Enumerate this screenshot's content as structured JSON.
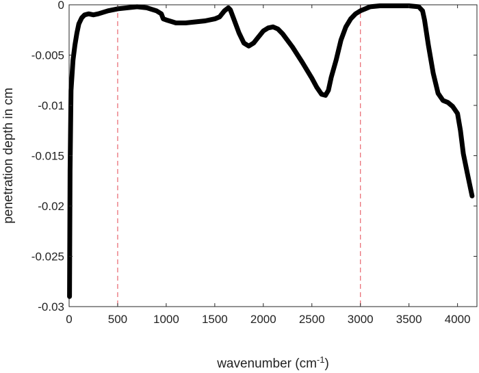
{
  "chart_data": {
    "type": "line",
    "title": "",
    "xlabel": "wavenumber (cm",
    "xlabel_sup": "-1",
    "xlabel_close": ")",
    "ylabel": "penetration depth in cm",
    "xlim": [
      0,
      4200
    ],
    "ylim": [
      -0.03,
      0
    ],
    "grid": false,
    "x_ticks": [
      0,
      500,
      1000,
      1500,
      2000,
      2500,
      3000,
      3500,
      4000
    ],
    "x_tick_labels": [
      "0",
      "500",
      "1000",
      "1500",
      "2000",
      "2500",
      "3000",
      "3500",
      "4000"
    ],
    "y_ticks": [
      0,
      -0.005,
      -0.01,
      -0.015,
      -0.02,
      -0.025,
      -0.03
    ],
    "y_tick_labels": [
      "0",
      "-0.005",
      "-0.01",
      "-0.015",
      "-0.02",
      "-0.025",
      "-0.03"
    ],
    "line_color": "#000000",
    "vlines": [
      {
        "x": 500,
        "color": "#e8626b",
        "style": "dashed"
      },
      {
        "x": 3000,
        "color": "#e8626b",
        "style": "dashed"
      }
    ],
    "series": [
      {
        "x": [
          4,
          10,
          20,
          40,
          60,
          80,
          100,
          130,
          160,
          200,
          250,
          300,
          400,
          500,
          600,
          700,
          800,
          900,
          950,
          970,
          1000,
          1100,
          1200,
          1300,
          1400,
          1500,
          1550,
          1600,
          1640,
          1660,
          1700,
          1750,
          1800,
          1850,
          1900,
          1950,
          2000,
          2050,
          2100,
          2150,
          2200,
          2300,
          2400,
          2500,
          2550,
          2600,
          2640,
          2670,
          2700,
          2750,
          2800,
          2850,
          2900,
          2950,
          3000,
          3050,
          3100,
          3200,
          3300,
          3400,
          3500,
          3600,
          3640,
          3660,
          3700,
          3750,
          3800,
          3850,
          3900,
          3950,
          4000,
          4030,
          4060,
          4100,
          4150
        ],
        "y": [
          -0.029,
          -0.0165,
          -0.0085,
          -0.0055,
          -0.004,
          -0.0028,
          -0.0019,
          -0.0013,
          -0.001,
          -0.0009,
          -0.001,
          -0.0009,
          -0.0006,
          -0.0004,
          -0.0003,
          -0.0002,
          -0.0003,
          -0.0006,
          -0.0009,
          -0.0014,
          -0.0015,
          -0.0018,
          -0.0018,
          -0.0017,
          -0.0016,
          -0.0014,
          -0.0012,
          -0.0006,
          -0.0003,
          -0.0005,
          -0.0015,
          -0.0028,
          -0.0038,
          -0.0041,
          -0.0038,
          -0.0032,
          -0.0026,
          -0.0023,
          -0.0022,
          -0.0024,
          -0.0029,
          -0.0042,
          -0.0057,
          -0.0073,
          -0.0082,
          -0.0089,
          -0.009,
          -0.0085,
          -0.0072,
          -0.0055,
          -0.0035,
          -0.0022,
          -0.0014,
          -0.0009,
          -0.0006,
          -0.0004,
          -0.0002,
          -0.0001,
          -0.0001,
          -0.0001,
          -0.0001,
          -0.0002,
          -0.0006,
          -0.0015,
          -0.004,
          -0.0068,
          -0.0088,
          -0.0095,
          -0.0097,
          -0.0101,
          -0.0108,
          -0.0125,
          -0.0148,
          -0.0167,
          -0.019
        ]
      }
    ]
  }
}
